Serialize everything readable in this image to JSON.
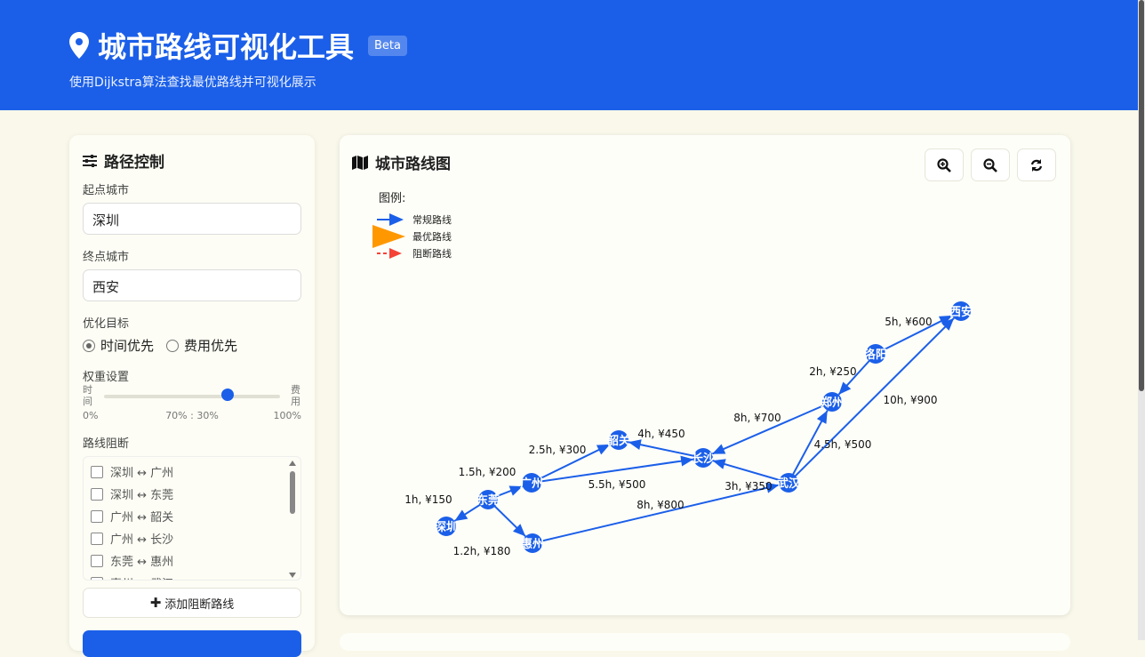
{
  "header": {
    "title": "城市路线可视化工具",
    "badge": "Beta",
    "subtitle": "使用Dijkstra算法查找最优路线并可视化展示",
    "icon": "map-marker-icon"
  },
  "colors": {
    "primary": "#1b5fe9",
    "optimal": "#ff9800",
    "blocked": "#f44336"
  },
  "sidebar": {
    "title": "路径控制",
    "start_label": "起点城市",
    "start_value": "深圳",
    "end_label": "终点城市",
    "end_value": "西安",
    "optimize_label": "优化目标",
    "options": [
      {
        "label": "时间优先",
        "selected": true
      },
      {
        "label": "费用优先",
        "selected": false
      }
    ],
    "weight_label": "权重设置",
    "weight_left": "时间",
    "weight_right": "费用",
    "weight_min": "0%",
    "weight_mid": "70% : 30%",
    "weight_max": "100%",
    "weight_time_percent": 70,
    "block_label": "路线阻断",
    "blocks": [
      "深圳 ↔ 广州",
      "深圳 ↔ 东莞",
      "广州 ↔ 韶关",
      "广州 ↔ 长沙",
      "东莞 ↔ 惠州",
      "惠州 ↔ 武汉"
    ],
    "add_block": "添加阻断路线"
  },
  "map": {
    "title": "城市路线图",
    "legend_title": "图例:",
    "legend": [
      "常规路线",
      "最优路线",
      "阻断路线"
    ],
    "nodes": [
      "深圳",
      "东莞",
      "广州",
      "惠州",
      "韶关",
      "长沙",
      "武汉",
      "郑州",
      "洛阳",
      "西安"
    ],
    "edges": [
      {
        "from": "东莞",
        "to": "深圳",
        "label": "1h, ¥150"
      },
      {
        "from": "东莞",
        "to": "广州",
        "label": "1.5h, ¥200"
      },
      {
        "from": "东莞",
        "to": "惠州",
        "label": "1.2h, ¥180"
      },
      {
        "from": "广州",
        "to": "韶关",
        "label": "2.5h, ¥300"
      },
      {
        "from": "广州",
        "to": "长沙",
        "label": "5.5h, ¥500"
      },
      {
        "from": "长沙",
        "to": "韶关",
        "label": "4h, ¥450"
      },
      {
        "from": "武汉",
        "to": "长沙",
        "label": "3h, ¥350"
      },
      {
        "from": "惠州",
        "to": "武汉",
        "label": "8h, ¥800"
      },
      {
        "from": "郑州",
        "to": "长沙",
        "label": "8h, ¥700"
      },
      {
        "from": "武汉",
        "to": "郑州",
        "label": "4.5h, ¥500"
      },
      {
        "from": "洛阳",
        "to": "郑州",
        "label": "2h, ¥250"
      },
      {
        "from": "武汉",
        "to": "西安",
        "label": "10h, ¥900"
      },
      {
        "from": "洛阳",
        "to": "西安",
        "label": "5h, ¥600"
      }
    ]
  }
}
